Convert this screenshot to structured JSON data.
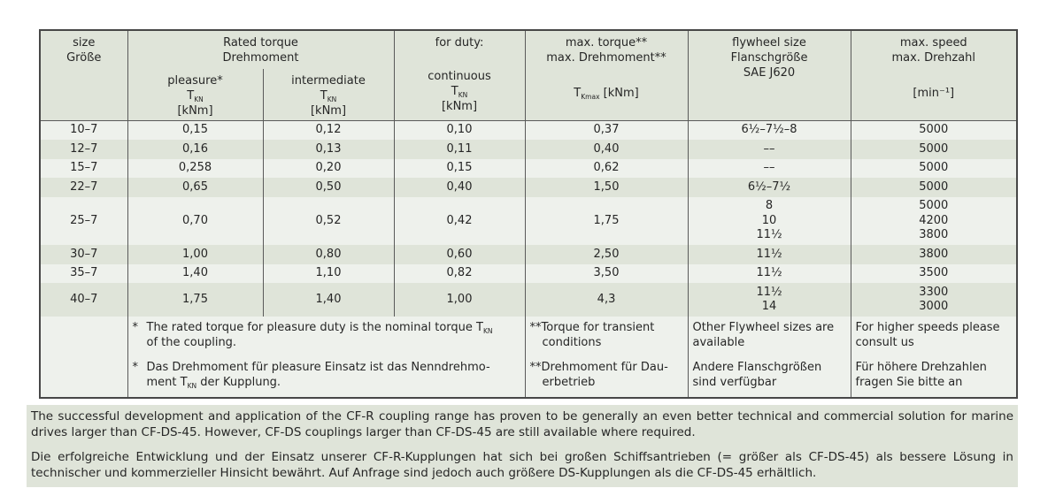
{
  "colors": {
    "page_bg": "#ffffff",
    "row_light": "#eef1ec",
    "row_dark": "#dfe4d9",
    "header_bg": "#dfe4d9",
    "notes_bg": "#dfe4d9",
    "border": "#5a5a5a",
    "outer_border": "#474747",
    "text": "#262626"
  },
  "table": {
    "header": {
      "size_l1": "size",
      "size_l2": "Größe",
      "rated_l1": "Rated torque",
      "rated_l2": "Drehmoment",
      "duty_l1": "for duty:",
      "pleasure": "pleasure*",
      "intermediate": "intermediate",
      "continuous": "continuous",
      "t_sym": "T",
      "t_sub": "KN",
      "t_unit": "[kNm]",
      "maxt_l1": "max. torque**",
      "maxt_l2": "max. Drehmoment**",
      "maxt_sym": "T",
      "maxt_sub": "Kmax",
      "maxt_unit": " [kNm]",
      "fly_l1": "flywheel size",
      "fly_l2": "Flanschgröße",
      "fly_l3": "SAE J620",
      "speed_l1": "max. speed",
      "speed_l2": "max. Drehzahl",
      "speed_unit": "[min⁻¹]"
    },
    "rows": [
      {
        "size": "10–7",
        "pleasure": "0,15",
        "intermediate": "0,12",
        "continuous": "0,10",
        "max_torque": "0,37",
        "flywheel": "6½–7½–8",
        "speed": "5000"
      },
      {
        "size": "12–7",
        "pleasure": "0,16",
        "intermediate": "0,13",
        "continuous": "0,11",
        "max_torque": "0,40",
        "flywheel": "––",
        "speed": "5000"
      },
      {
        "size": "15–7",
        "pleasure": "0,258",
        "intermediate": "0,20",
        "continuous": "0,15",
        "max_torque": "0,62",
        "flywheel": "––",
        "speed": "5000"
      },
      {
        "size": "22–7",
        "pleasure": "0,65",
        "intermediate": "0,50",
        "continuous": "0,40",
        "max_torque": "1,50",
        "flywheel": "6½–7½",
        "speed": "5000"
      },
      {
        "size": "25–7",
        "pleasure": "0,70",
        "intermediate": "0,52",
        "continuous": "0,42",
        "max_torque": "1,75",
        "flywheel": "8\n10\n11½",
        "speed": "5000\n4200\n3800"
      },
      {
        "size": "30–7",
        "pleasure": "1,00",
        "intermediate": "0,80",
        "continuous": "0,60",
        "max_torque": "2,50",
        "flywheel": "11½",
        "speed": "3800"
      },
      {
        "size": "35–7",
        "pleasure": "1,40",
        "intermediate": "1,10",
        "continuous": "0,82",
        "max_torque": "3,50",
        "flywheel": "11½",
        "speed": "3500"
      },
      {
        "size": "40–7",
        "pleasure": "1,75",
        "intermediate": "1,40",
        "continuous": "1,00",
        "max_torque": "4,3",
        "flywheel": "11½\n14",
        "speed": "3300\n3000"
      }
    ]
  },
  "footnotes": {
    "rated": [
      {
        "marker": "*",
        "p1": "The rated torque for pleasure duty is the nominal torque T",
        "sub": "KN",
        "p2": "\nof the coupling."
      },
      {
        "marker": "*",
        "p1": "Das Drehmoment für pleasure Einsatz ist das Nenndrehmo-\nment T",
        "sub": "KN",
        "p2": " der Kupplung."
      }
    ],
    "max_torque": [
      "**Torque for transient\nconditions",
      "**Drehmoment für Dau-\nerbetrieb"
    ],
    "flywheel": [
      "Other Flywheel sizes are\navailable",
      "Andere Flanschgrößen\nsind verfügbar"
    ],
    "speed": [
      "For higher speeds please\nconsult us",
      "Für höhere Drehzahlen\nfragen Sie bitte an"
    ]
  },
  "paragraphs": [
    "The successful development and application of the CF-R coupling range has proven to be generally an even better technical and commercial solution for marine drives larger than CF-DS-45. However, CF-DS couplings larger than CF-DS-45 are still available where required.",
    "Die erfolgreiche Entwicklung und der Einsatz unserer CF-R-Kupplungen hat sich bei großen Schiffsantrieben (= größer als CF-DS-45) als bessere Lösung in technischer und kommerzieller Hinsicht bewährt. Auf Anfrage sind jedoch auch größere DS-Kupplungen als die CF-DS-45 erhältlich."
  ]
}
